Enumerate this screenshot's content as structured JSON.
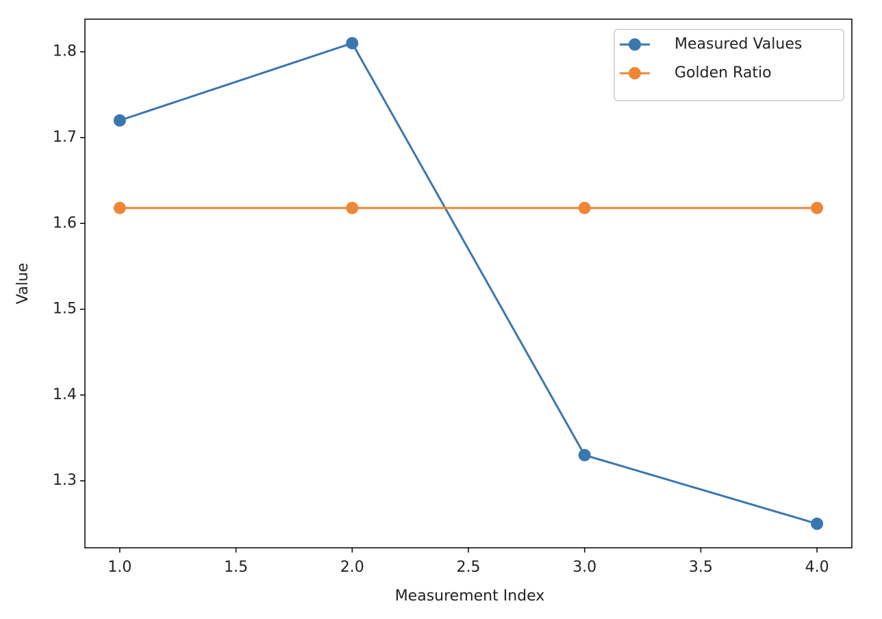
{
  "chart_data": {
    "type": "line",
    "xlabel": "Measurement Index",
    "ylabel": "Value",
    "x": [
      1,
      2,
      3,
      4
    ],
    "series": [
      {
        "name": "Measured Values",
        "color": "#3a76b0",
        "values": [
          1.72,
          1.81,
          1.33,
          1.25
        ]
      },
      {
        "name": "Golden Ratio",
        "color": "#ef8636",
        "values": [
          1.618,
          1.618,
          1.618,
          1.618
        ]
      }
    ],
    "xlim": [
      0.85,
      4.15
    ],
    "xticks": [
      {
        "value": 1,
        "label": "1.0"
      },
      {
        "value": 1.5,
        "label": "1.5"
      },
      {
        "value": 2,
        "label": "2.0"
      },
      {
        "value": 2.5,
        "label": "2.5"
      },
      {
        "value": 3,
        "label": "3.0"
      },
      {
        "value": 3.5,
        "label": "3.5"
      },
      {
        "value": 4,
        "label": "4.0"
      }
    ],
    "ylim": [
      1.222,
      1.838
    ],
    "yticks": [
      1.3,
      1.4,
      1.5,
      1.6,
      1.7,
      1.8
    ],
    "grid": false,
    "legend": "upper right"
  }
}
